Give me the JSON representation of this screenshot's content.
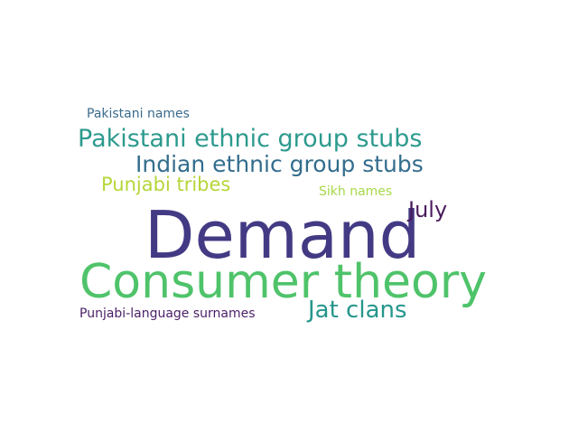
{
  "background_color": "#ffffff",
  "words": [
    {
      "text": "Demand",
      "color": "#433a84"
    },
    {
      "text": "Consumer theory",
      "color": "#4fc36a"
    },
    {
      "text": "Pakistani ethnic group stubs",
      "color": "#2d9a8e"
    },
    {
      "text": "Indian ethnic group stubs",
      "color": "#336d8d"
    },
    {
      "text": "Punjabi tribes",
      "color": "#b5d639"
    },
    {
      "text": "Jat clans",
      "color": "#25968c"
    },
    {
      "text": "July",
      "color": "#4a1b5d"
    },
    {
      "text": "Pakistani names",
      "color": "#3b6b8c"
    },
    {
      "text": "Sikh names",
      "color": "#a8d84a"
    },
    {
      "text": "Punjabi-language surnames",
      "color": "#4a1f66"
    }
  ]
}
